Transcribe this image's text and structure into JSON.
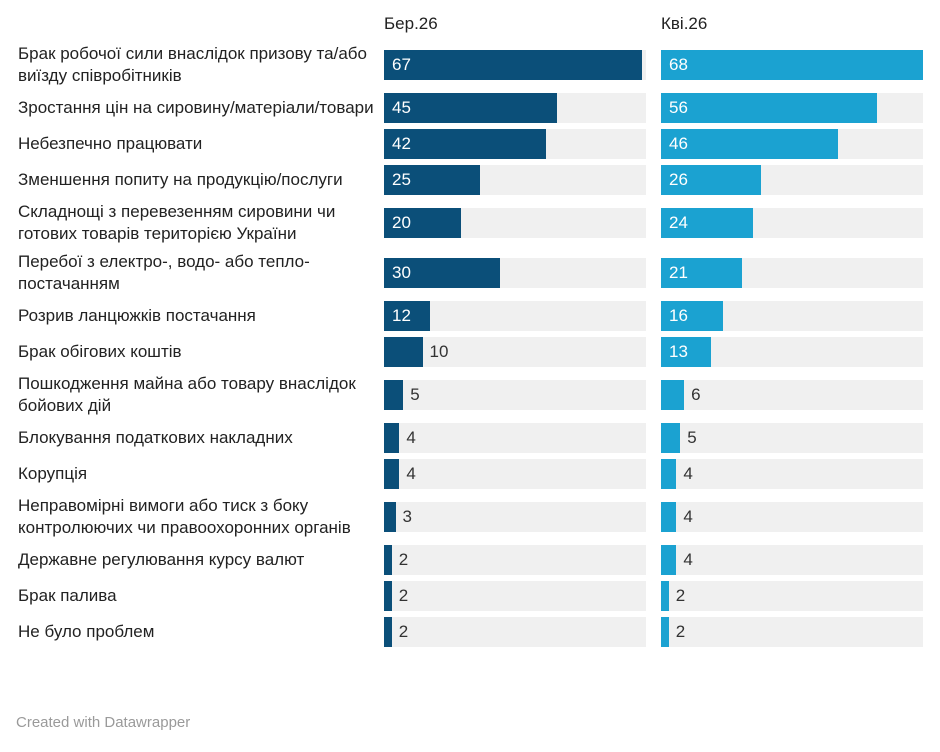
{
  "chart_data": {
    "type": "bar",
    "categories": [
      "Брак робочої сили внаслідок призову та/або виїзду співробітників",
      "Зростання цін на сировину/матеріали/товари",
      "Небезпечно працювати",
      "Зменшення попиту на продукцію/послуги",
      "Складнощі з перевезенням сировини чи готових товарів територією України",
      "Перебої з електро-, водо- або тепло-постачанням",
      "Розрив ланцюжків постачання",
      "Брак обігових коштів",
      "Пошкодження майна або товару внаслідок бойових дій",
      "Блокування податкових накладних",
      "Корупція",
      "Неправомірні вимоги або тиск з боку контролюючих чи правоохоронних органів",
      "Державне регулювання курсу валют",
      "Брак палива",
      "Не було проблем"
    ],
    "series": [
      {
        "name": "Бер.26",
        "color": "#0b4f79",
        "values": [
          67,
          45,
          42,
          25,
          20,
          30,
          12,
          10,
          5,
          4,
          4,
          3,
          2,
          2,
          2
        ]
      },
      {
        "name": "Кві.26",
        "color": "#1ba2d1",
        "values": [
          68,
          56,
          46,
          26,
          24,
          21,
          16,
          13,
          6,
          5,
          4,
          4,
          4,
          2,
          2
        ]
      }
    ],
    "credit": "Created with Datawrapper"
  }
}
